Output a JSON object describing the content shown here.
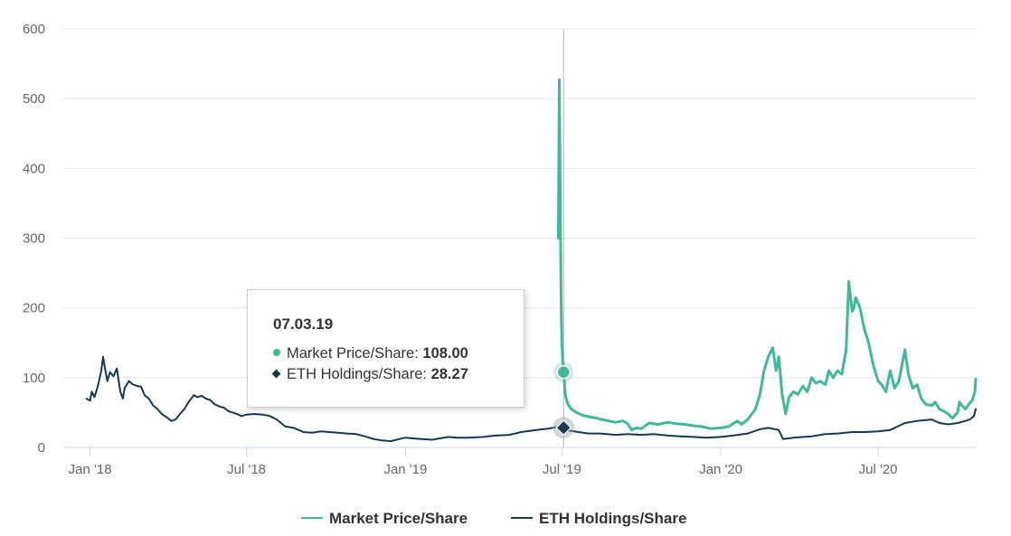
{
  "colors": {
    "market": "#3fb89b",
    "eth": "#17394f",
    "grid": "#e6e6e6",
    "axis": "#ccd6eb",
    "crosshair": "#b3b3b3"
  },
  "chart_data": {
    "type": "line",
    "x_type": "date",
    "xlim": [
      "2017-12-01",
      "2020-10-23"
    ],
    "ylim": [
      0,
      600
    ],
    "y_ticks": [
      0,
      100,
      200,
      300,
      400,
      500,
      600
    ],
    "x_ticks": [
      {
        "date": "2018-01-01",
        "label": "Jan '18"
      },
      {
        "date": "2018-07-01",
        "label": "Jul '18"
      },
      {
        "date": "2019-01-01",
        "label": "Jan '19"
      },
      {
        "date": "2019-07-01",
        "label": "Jul '19"
      },
      {
        "date": "2020-01-01",
        "label": "Jan '20"
      },
      {
        "date": "2020-07-01",
        "label": "Jul '20"
      }
    ],
    "grid": true,
    "legend_position": "bottom-center",
    "series": [
      {
        "name": "Market Price/Share",
        "color": "#3fb89b",
        "points": [
          [
            "2019-06-27",
            300
          ],
          [
            "2019-06-28",
            527
          ],
          [
            "2019-06-29",
            380
          ],
          [
            "2019-06-30",
            220
          ],
          [
            "2019-07-01",
            150
          ],
          [
            "2019-07-02",
            125
          ],
          [
            "2019-07-03",
            108
          ],
          [
            "2019-07-05",
            75
          ],
          [
            "2019-07-08",
            62
          ],
          [
            "2019-07-12",
            55
          ],
          [
            "2019-07-18",
            50
          ],
          [
            "2019-07-25",
            46
          ],
          [
            "2019-08-01",
            44
          ],
          [
            "2019-08-10",
            42
          ],
          [
            "2019-08-20",
            39
          ],
          [
            "2019-09-01",
            36
          ],
          [
            "2019-09-10",
            38
          ],
          [
            "2019-09-15",
            34
          ],
          [
            "2019-09-20",
            25
          ],
          [
            "2019-09-25",
            28
          ],
          [
            "2019-10-01",
            27
          ],
          [
            "2019-10-10",
            35
          ],
          [
            "2019-10-20",
            33
          ],
          [
            "2019-11-01",
            36
          ],
          [
            "2019-11-10",
            34
          ],
          [
            "2019-11-20",
            33
          ],
          [
            "2019-12-01",
            31
          ],
          [
            "2019-12-10",
            30
          ],
          [
            "2019-12-20",
            27
          ],
          [
            "2020-01-01",
            28
          ],
          [
            "2020-01-10",
            30
          ],
          [
            "2020-01-20",
            38
          ],
          [
            "2020-01-25",
            33
          ],
          [
            "2020-02-01",
            40
          ],
          [
            "2020-02-10",
            55
          ],
          [
            "2020-02-15",
            75
          ],
          [
            "2020-02-20",
            110
          ],
          [
            "2020-02-25",
            130
          ],
          [
            "2020-03-01",
            143
          ],
          [
            "2020-03-05",
            110
          ],
          [
            "2020-03-08",
            130
          ],
          [
            "2020-03-12",
            75
          ],
          [
            "2020-03-16",
            48
          ],
          [
            "2020-03-20",
            72
          ],
          [
            "2020-03-25",
            80
          ],
          [
            "2020-03-30",
            76
          ],
          [
            "2020-04-05",
            88
          ],
          [
            "2020-04-10",
            80
          ],
          [
            "2020-04-15",
            100
          ],
          [
            "2020-04-20",
            92
          ],
          [
            "2020-04-25",
            95
          ],
          [
            "2020-05-01",
            90
          ],
          [
            "2020-05-05",
            110
          ],
          [
            "2020-05-10",
            100
          ],
          [
            "2020-05-15",
            110
          ],
          [
            "2020-05-20",
            105
          ],
          [
            "2020-05-25",
            140
          ],
          [
            "2020-05-28",
            238
          ],
          [
            "2020-06-01",
            195
          ],
          [
            "2020-06-03",
            200
          ],
          [
            "2020-06-05",
            215
          ],
          [
            "2020-06-10",
            200
          ],
          [
            "2020-06-15",
            170
          ],
          [
            "2020-06-20",
            150
          ],
          [
            "2020-06-25",
            120
          ],
          [
            "2020-07-01",
            95
          ],
          [
            "2020-07-05",
            90
          ],
          [
            "2020-07-10",
            80
          ],
          [
            "2020-07-15",
            110
          ],
          [
            "2020-07-20",
            85
          ],
          [
            "2020-07-25",
            95
          ],
          [
            "2020-08-01",
            140
          ],
          [
            "2020-08-05",
            105
          ],
          [
            "2020-08-10",
            85
          ],
          [
            "2020-08-15",
            90
          ],
          [
            "2020-08-20",
            70
          ],
          [
            "2020-08-25",
            62
          ],
          [
            "2020-09-01",
            60
          ],
          [
            "2020-09-05",
            65
          ],
          [
            "2020-09-10",
            55
          ],
          [
            "2020-09-15",
            52
          ],
          [
            "2020-09-20",
            48
          ],
          [
            "2020-09-25",
            42
          ],
          [
            "2020-10-01",
            50
          ],
          [
            "2020-10-03",
            65
          ],
          [
            "2020-10-06",
            60
          ],
          [
            "2020-10-10",
            55
          ],
          [
            "2020-10-14",
            62
          ],
          [
            "2020-10-18",
            68
          ],
          [
            "2020-10-21",
            80
          ],
          [
            "2020-10-22",
            98
          ]
        ]
      },
      {
        "name": "ETH Holdings/Share",
        "color": "#17394f",
        "points": [
          [
            "2017-12-28",
            70
          ],
          [
            "2018-01-01",
            67
          ],
          [
            "2018-01-03",
            80
          ],
          [
            "2018-01-06",
            72
          ],
          [
            "2018-01-10",
            88
          ],
          [
            "2018-01-14",
            110
          ],
          [
            "2018-01-16",
            130
          ],
          [
            "2018-01-18",
            115
          ],
          [
            "2018-01-21",
            95
          ],
          [
            "2018-01-24",
            108
          ],
          [
            "2018-01-28",
            102
          ],
          [
            "2018-02-01",
            113
          ],
          [
            "2018-02-05",
            80
          ],
          [
            "2018-02-08",
            70
          ],
          [
            "2018-02-10",
            85
          ],
          [
            "2018-02-15",
            95
          ],
          [
            "2018-02-20",
            90
          ],
          [
            "2018-02-25",
            88
          ],
          [
            "2018-03-01",
            87
          ],
          [
            "2018-03-05",
            75
          ],
          [
            "2018-03-10",
            70
          ],
          [
            "2018-03-15",
            60
          ],
          [
            "2018-03-20",
            55
          ],
          [
            "2018-03-25",
            48
          ],
          [
            "2018-04-01",
            42
          ],
          [
            "2018-04-05",
            38
          ],
          [
            "2018-04-10",
            40
          ],
          [
            "2018-04-15",
            48
          ],
          [
            "2018-04-20",
            55
          ],
          [
            "2018-04-25",
            65
          ],
          [
            "2018-05-01",
            75
          ],
          [
            "2018-05-05",
            72
          ],
          [
            "2018-05-10",
            74
          ],
          [
            "2018-05-15",
            70
          ],
          [
            "2018-05-20",
            68
          ],
          [
            "2018-05-25",
            62
          ],
          [
            "2018-06-01",
            58
          ],
          [
            "2018-06-05",
            57
          ],
          [
            "2018-06-10",
            52
          ],
          [
            "2018-06-15",
            50
          ],
          [
            "2018-06-20",
            48
          ],
          [
            "2018-06-25",
            45
          ],
          [
            "2018-07-01",
            47
          ],
          [
            "2018-07-10",
            48
          ],
          [
            "2018-07-20",
            47
          ],
          [
            "2018-07-28",
            45
          ],
          [
            "2018-08-05",
            40
          ],
          [
            "2018-08-15",
            30
          ],
          [
            "2018-08-25",
            28
          ],
          [
            "2018-09-05",
            22
          ],
          [
            "2018-09-15",
            21
          ],
          [
            "2018-09-25",
            23
          ],
          [
            "2018-10-05",
            22
          ],
          [
            "2018-10-15",
            21
          ],
          [
            "2018-10-25",
            20
          ],
          [
            "2018-11-05",
            19
          ],
          [
            "2018-11-15",
            16
          ],
          [
            "2018-11-25",
            12
          ],
          [
            "2018-12-05",
            10
          ],
          [
            "2018-12-15",
            9
          ],
          [
            "2018-12-25",
            12
          ],
          [
            "2019-01-01",
            14
          ],
          [
            "2019-01-10",
            13
          ],
          [
            "2019-01-20",
            12
          ],
          [
            "2019-02-01",
            11
          ],
          [
            "2019-02-10",
            13
          ],
          [
            "2019-02-20",
            15
          ],
          [
            "2019-03-01",
            14
          ],
          [
            "2019-03-15",
            14
          ],
          [
            "2019-04-01",
            15
          ],
          [
            "2019-04-15",
            17
          ],
          [
            "2019-05-01",
            18
          ],
          [
            "2019-05-15",
            22
          ],
          [
            "2019-06-01",
            25
          ],
          [
            "2019-06-15",
            27
          ],
          [
            "2019-06-25",
            29
          ],
          [
            "2019-07-03",
            28.27
          ],
          [
            "2019-07-10",
            24
          ],
          [
            "2019-07-20",
            22
          ],
          [
            "2019-08-01",
            20
          ],
          [
            "2019-08-15",
            20
          ],
          [
            "2019-09-01",
            18
          ],
          [
            "2019-09-15",
            19
          ],
          [
            "2019-10-01",
            18
          ],
          [
            "2019-10-15",
            19
          ],
          [
            "2019-11-01",
            17
          ],
          [
            "2019-11-15",
            16
          ],
          [
            "2019-12-01",
            15
          ],
          [
            "2019-12-15",
            14
          ],
          [
            "2020-01-01",
            15
          ],
          [
            "2020-01-15",
            17
          ],
          [
            "2020-02-01",
            20
          ],
          [
            "2020-02-15",
            26
          ],
          [
            "2020-02-25",
            28
          ],
          [
            "2020-03-08",
            25
          ],
          [
            "2020-03-13",
            12
          ],
          [
            "2020-03-25",
            14
          ],
          [
            "2020-04-15",
            16
          ],
          [
            "2020-05-01",
            19
          ],
          [
            "2020-05-15",
            20
          ],
          [
            "2020-06-01",
            22
          ],
          [
            "2020-06-15",
            22
          ],
          [
            "2020-07-01",
            23
          ],
          [
            "2020-07-15",
            25
          ],
          [
            "2020-08-01",
            35
          ],
          [
            "2020-08-15",
            38
          ],
          [
            "2020-09-01",
            40
          ],
          [
            "2020-09-10",
            35
          ],
          [
            "2020-09-20",
            33
          ],
          [
            "2020-10-01",
            35
          ],
          [
            "2020-10-10",
            38
          ],
          [
            "2020-10-15",
            40
          ],
          [
            "2020-10-20",
            45
          ],
          [
            "2020-10-22",
            55
          ]
        ]
      }
    ],
    "tooltip": {
      "date": "07.03.19",
      "rows": [
        {
          "label": "Market Price/Share: ",
          "value": "108.00"
        },
        {
          "label": "ETH Holdings/Share: ",
          "value": "28.27"
        }
      ]
    }
  }
}
